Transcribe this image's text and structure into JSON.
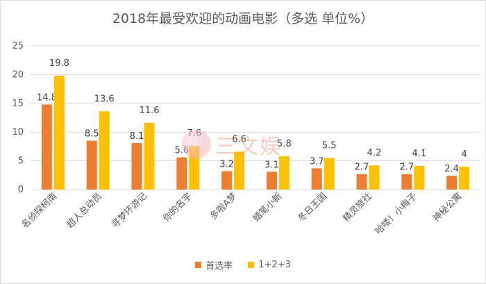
{
  "chart_data": {
    "type": "bar",
    "title": "2018年最受欢迎的动画电影（多选 单位%）",
    "categories": [
      "名侦探柯南",
      "超人总动员",
      "寻梦环游记",
      "你的名字",
      "多啦A梦",
      "蜡笔小新",
      "冬日王国",
      "精灵旅社",
      "哈喽！小梅子",
      "神秘公寓"
    ],
    "series": [
      {
        "name": "首选率",
        "color": "#ed7d31",
        "values": [
          14.8,
          8.5,
          8.1,
          5.6,
          3.2,
          3.1,
          3.7,
          2.7,
          2.7,
          2.4
        ]
      },
      {
        "name": "1+2+3",
        "color": "#ffc000",
        "values": [
          19.8,
          13.6,
          11.6,
          7.6,
          6.6,
          5.8,
          5.5,
          4.2,
          4.1,
          4
        ]
      }
    ],
    "ylim": [
      0,
      25
    ],
    "yticks": [
      0,
      5,
      10,
      15,
      20,
      25
    ],
    "grid": true,
    "legend_position": "bottom"
  },
  "watermark_text": "三文娱"
}
